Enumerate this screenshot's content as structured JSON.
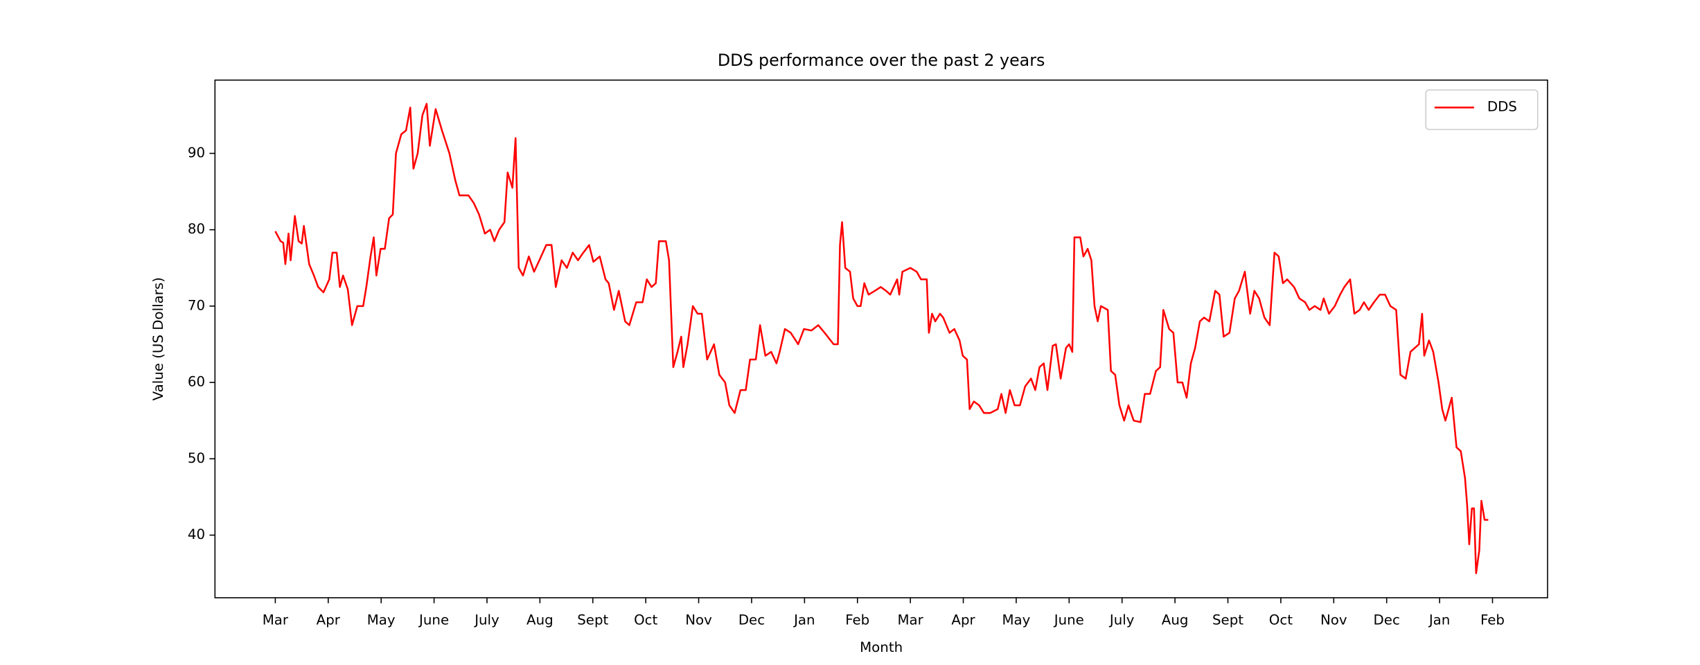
{
  "chart_data": {
    "type": "line",
    "title": "DDS performance over the past 2 years",
    "x_label": "Month",
    "y_label": "Value (US Dollars)",
    "xlim": [
      -1.14,
      24.04
    ],
    "ylim": [
      31.8,
      99.6
    ],
    "xticks": [
      {
        "value": 0,
        "label": "Mar"
      },
      {
        "value": 1,
        "label": "Apr"
      },
      {
        "value": 2,
        "label": "May"
      },
      {
        "value": 3,
        "label": "June"
      },
      {
        "value": 4,
        "label": "July"
      },
      {
        "value": 5,
        "label": "Aug"
      },
      {
        "value": 6,
        "label": "Sept"
      },
      {
        "value": 7,
        "label": "Oct"
      },
      {
        "value": 8,
        "label": "Nov"
      },
      {
        "value": 9,
        "label": "Dec"
      },
      {
        "value": 10,
        "label": "Jan"
      },
      {
        "value": 11,
        "label": "Feb"
      },
      {
        "value": 12,
        "label": "Mar"
      },
      {
        "value": 13,
        "label": "Apr"
      },
      {
        "value": 14,
        "label": "May"
      },
      {
        "value": 15,
        "label": "June"
      },
      {
        "value": 16,
        "label": "July"
      },
      {
        "value": 17,
        "label": "Aug"
      },
      {
        "value": 18,
        "label": "Sept"
      },
      {
        "value": 19,
        "label": "Oct"
      },
      {
        "value": 20,
        "label": "Nov"
      },
      {
        "value": 21,
        "label": "Dec"
      },
      {
        "value": 22,
        "label": "Jan"
      },
      {
        "value": 23,
        "label": "Feb"
      }
    ],
    "yticks": [
      40,
      50,
      60,
      70,
      80,
      90
    ],
    "grid": false,
    "legend": "upper right",
    "x": [
      0,
      0.1,
      0.15,
      0.19,
      0.25,
      0.29,
      0.37,
      0.44,
      0.5,
      0.54,
      0.64,
      0.73,
      0.81,
      0.91,
      1.02,
      1.08,
      1.16,
      1.22,
      1.28,
      1.37,
      1.45,
      1.55,
      1.66,
      1.72,
      1.8,
      1.86,
      1.91,
      1.99,
      2.07,
      2.15,
      2.22,
      2.28,
      2.38,
      2.47,
      2.55,
      2.61,
      2.69,
      2.78,
      2.86,
      2.92,
      3.03,
      3.15,
      3.29,
      3.4,
      3.48,
      3.65,
      3.75,
      3.85,
      3.96,
      4.06,
      4.14,
      4.23,
      4.33,
      4.39,
      4.48,
      4.54,
      4.6,
      4.68,
      4.79,
      4.89,
      4.99,
      5.12,
      5.22,
      5.3,
      5.41,
      5.51,
      5.62,
      5.72,
      5.82,
      5.93,
      6.01,
      6.13,
      6.24,
      6.3,
      6.4,
      6.49,
      6.61,
      6.69,
      6.82,
      6.94,
      7.02,
      7.11,
      7.19,
      7.25,
      7.38,
      7.44,
      7.52,
      7.6,
      7.67,
      7.71,
      7.79,
      7.89,
      7.98,
      8.06,
      8.16,
      8.29,
      8.39,
      8.5,
      8.58,
      8.68,
      8.79,
      8.89,
      8.97,
      9.08,
      9.16,
      9.26,
      9.37,
      9.47,
      9.53,
      9.63,
      9.74,
      9.88,
      9.99,
      10.13,
      10.26,
      10.38,
      10.55,
      10.63,
      10.67,
      10.71,
      10.77,
      10.86,
      10.92,
      11.0,
      11.06,
      11.13,
      11.21,
      11.33,
      11.44,
      11.54,
      11.62,
      11.75,
      11.79,
      11.85,
      12.0,
      12.12,
      12.2,
      12.31,
      12.35,
      12.41,
      12.47,
      12.56,
      12.62,
      12.74,
      12.83,
      12.93,
      12.99,
      13.07,
      13.12,
      13.2,
      13.3,
      13.39,
      13.51,
      13.65,
      13.72,
      13.8,
      13.88,
      13.97,
      14.07,
      14.17,
      14.28,
      14.36,
      14.44,
      14.52,
      14.59,
      14.69,
      14.75,
      14.84,
      14.94,
      15.0,
      15.06,
      15.1,
      15.21,
      15.27,
      15.35,
      15.42,
      15.48,
      15.54,
      15.6,
      15.73,
      15.79,
      15.87,
      15.95,
      16.04,
      16.12,
      16.22,
      16.35,
      16.43,
      16.53,
      16.64,
      16.72,
      16.78,
      16.89,
      16.97,
      17.05,
      17.14,
      17.22,
      17.3,
      17.38,
      17.47,
      17.55,
      17.65,
      17.76,
      17.84,
      17.92,
      18.03,
      18.13,
      18.21,
      18.32,
      18.42,
      18.5,
      18.59,
      18.69,
      18.79,
      18.88,
      18.96,
      19.04,
      19.12,
      19.25,
      19.35,
      19.46,
      19.54,
      19.64,
      19.75,
      19.81,
      19.91,
      20.02,
      20.12,
      20.2,
      20.31,
      20.39,
      20.49,
      20.57,
      20.66,
      20.76,
      20.87,
      20.97,
      21.07,
      21.18,
      21.26,
      21.36,
      21.45,
      21.53,
      21.61,
      21.67,
      21.71,
      21.8,
      21.88,
      21.98,
      22.05,
      22.11,
      22.15,
      22.23,
      22.32,
      22.4,
      22.48,
      22.52,
      22.56,
      22.61,
      22.65,
      22.69,
      22.75,
      22.79,
      22.85,
      22.92
    ],
    "series": [
      {
        "name": "DDS",
        "color": "#ff0000",
        "values": [
          79.8,
          78.5,
          78.3,
          75.5,
          79.5,
          76,
          81.8,
          78.5,
          78.2,
          80.5,
          75.5,
          74,
          72.5,
          71.8,
          73.5,
          77,
          77,
          72.5,
          74,
          72.2,
          67.5,
          70,
          70,
          72.5,
          76.5,
          79,
          74,
          77.5,
          77.5,
          81.5,
          82,
          90,
          92.5,
          93,
          96,
          88,
          90,
          95,
          96.5,
          91,
          95.8,
          93,
          90,
          86.5,
          84.5,
          84.5,
          83.5,
          82,
          79.5,
          80,
          78.5,
          80,
          81,
          87.5,
          85.5,
          92,
          75,
          74,
          76.5,
          74.5,
          76,
          78,
          78,
          72.5,
          76,
          75,
          77,
          76,
          77,
          78,
          75.8,
          76.5,
          73.5,
          73,
          69.5,
          72,
          68,
          67.5,
          70.5,
          70.5,
          73.5,
          72.5,
          73,
          78.5,
          78.5,
          76,
          62,
          64,
          66,
          62,
          65,
          70,
          69,
          69,
          63,
          65,
          61,
          60,
          57,
          56,
          59,
          59,
          63,
          63,
          67.5,
          63.5,
          64,
          62.5,
          64,
          67,
          66.5,
          65,
          67,
          66.8,
          67.5,
          66.5,
          65,
          65,
          78,
          81,
          75,
          74.5,
          71,
          70,
          70,
          73,
          71.5,
          72,
          72.5,
          72,
          71.5,
          73.5,
          71.5,
          74.5,
          75,
          74.5,
          73.5,
          73.5,
          66.5,
          69,
          68,
          69,
          68.5,
          66.5,
          67,
          65.5,
          63.5,
          63,
          56.5,
          57.5,
          57,
          56,
          56,
          56.5,
          58.5,
          56,
          59,
          57,
          57,
          59.5,
          60.5,
          59,
          62,
          62.5,
          59,
          64.8,
          65,
          60.5,
          64.5,
          65,
          64,
          79,
          79,
          76.5,
          77.5,
          76,
          70,
          68,
          70,
          69.5,
          61.5,
          61,
          57,
          55,
          57,
          55,
          54.8,
          58.5,
          58.5,
          61.5,
          62,
          69.5,
          67,
          66.5,
          60,
          60,
          58,
          62.5,
          64.5,
          68,
          68.5,
          68,
          72,
          71.5,
          66,
          66.5,
          71,
          72,
          74.5,
          69,
          72,
          71,
          68.5,
          67.5,
          77,
          76.5,
          73,
          73.5,
          72.5,
          71,
          70.5,
          69.5,
          70,
          69.5,
          71,
          69,
          70,
          71.5,
          72.5,
          73.5,
          69,
          69.5,
          70.5,
          69.5,
          70.5,
          71.5,
          71.5,
          70,
          69.5,
          61,
          60.5,
          64,
          64.5,
          65,
          69,
          63.5,
          65.5,
          64,
          60,
          56.5,
          55,
          56,
          58,
          51.5,
          51,
          47.5,
          44,
          38.8,
          43.5,
          43.5,
          35,
          38,
          44.5,
          42,
          42
        ]
      }
    ]
  }
}
